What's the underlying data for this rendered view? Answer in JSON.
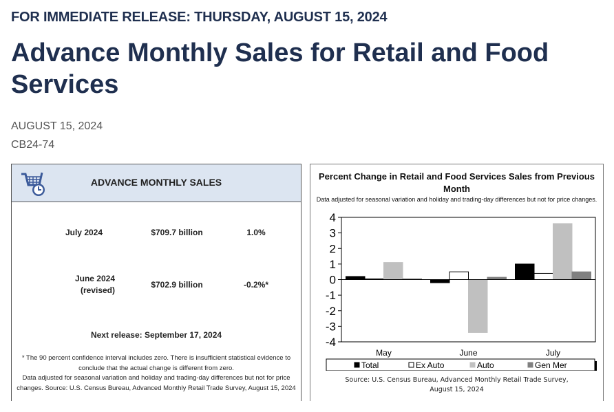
{
  "kicker": "FOR IMMEDIATE RELEASE: THURSDAY, AUGUST 15, 2024",
  "title": "Advance Monthly Sales for Retail and Food Services",
  "date": "AUGUST 15, 2024",
  "release_code": "CB24-74",
  "panel": {
    "heading": "ADVANCE MONTHLY SALES",
    "icon": "shopping-cart-clock-icon",
    "rows": [
      {
        "period": "July 2024",
        "period2": "",
        "amount": "$709.7 billion",
        "change": "1.0%"
      },
      {
        "period": "June 2024",
        "period2": "(revised)",
        "amount": "$702.9 billion",
        "change": "-0.2%*"
      }
    ],
    "next_release": "Next release: September 17, 2024",
    "footnote": "* The 90 percent confidence interval includes zero. There is insufficient statistical evidence to conclude that the actual change is different from zero.",
    "footnote2": "Data adjusted for seasonal variation and holiday and trading-day differences but not for price changes. Source: U.S. Census Bureau, Advanced Monthly Retail Trade Survey, August 15, 2024"
  },
  "chart_data": {
    "type": "bar",
    "title": "Percent Change in Retail and Food Services Sales from Previous Month",
    "subtitle": "Data adjusted for seasonal variation and holiday and trading-day differences but not for price changes.",
    "categories": [
      "May",
      "June",
      "July"
    ],
    "ylim": [
      -4,
      4
    ],
    "yticks": [
      "4",
      "3",
      "2",
      "1",
      "0",
      "-1",
      "-2",
      "-3",
      "-4"
    ],
    "series": [
      {
        "name": "Total",
        "color": "#000000",
        "values": [
          0.2,
          -0.2,
          1.0
        ]
      },
      {
        "name": "Ex Auto",
        "color": "#ffffff",
        "values": [
          0.05,
          0.5,
          0.4
        ]
      },
      {
        "name": "Auto",
        "color": "#c0c0c0",
        "values": [
          1.1,
          -3.4,
          3.6
        ]
      },
      {
        "name": "Gen Mer",
        "color": "#808080",
        "values": [
          0.05,
          0.15,
          0.5
        ]
      }
    ],
    "legend": "bottom",
    "source": "Source: U.S. Census Bureau, Advanced Monthly Retail Trade Survey,",
    "source2": "August 15, 2024"
  }
}
